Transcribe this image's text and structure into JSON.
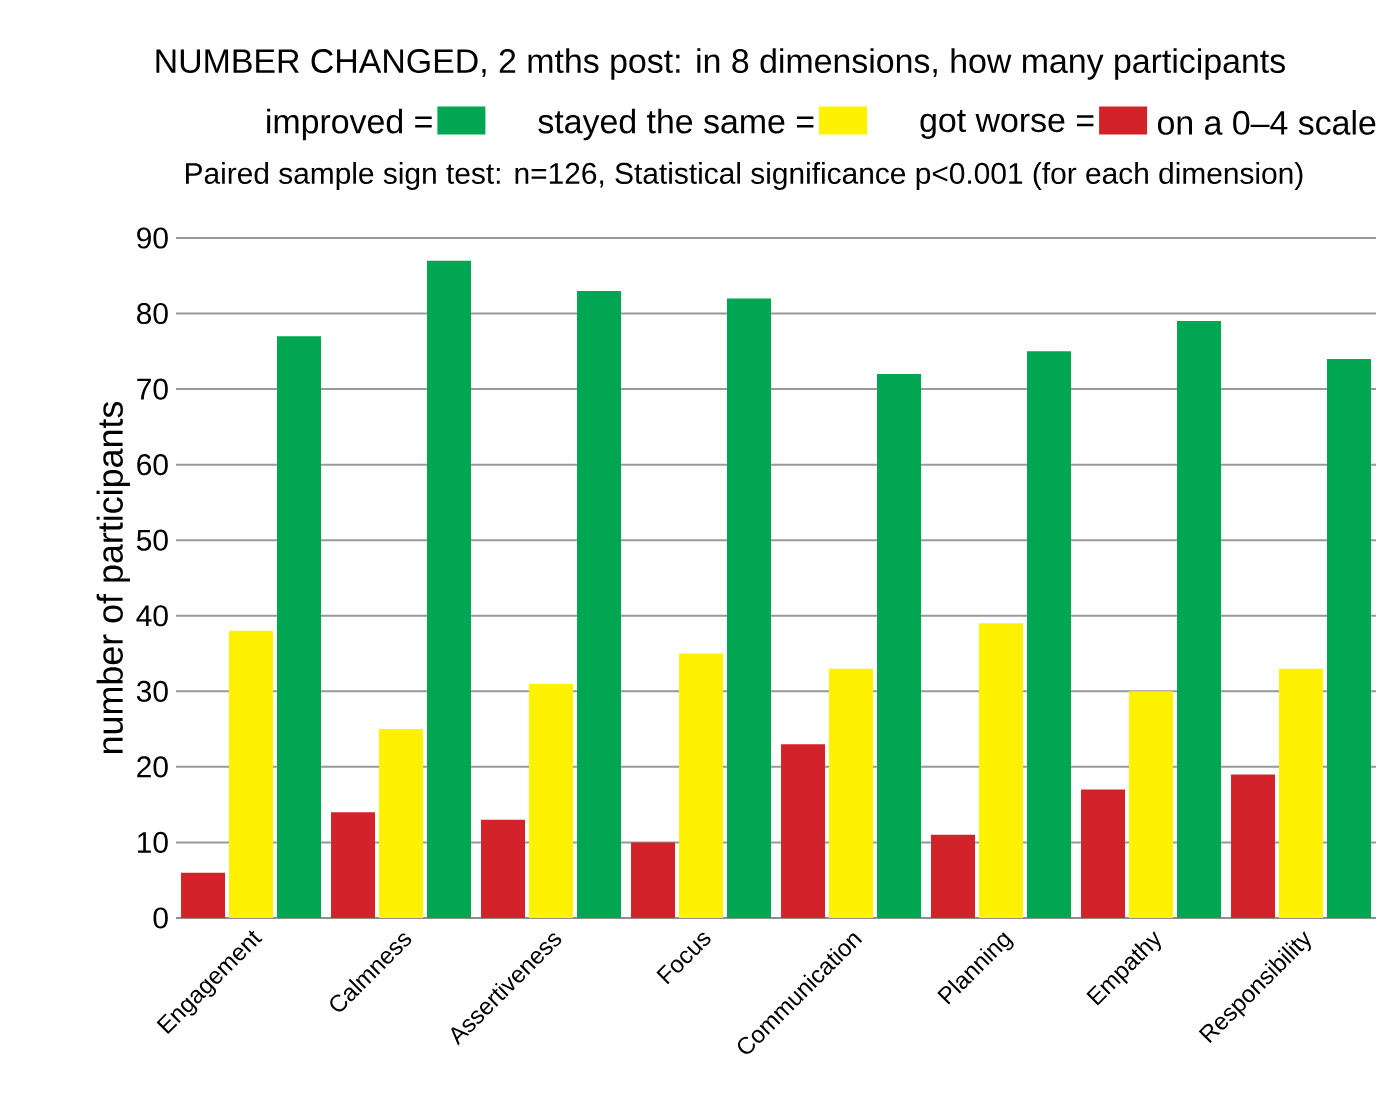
{
  "chart_data": {
    "type": "bar",
    "title": "NUMBER CHANGED, 2 mths post: in 8 dimensions, how many participants",
    "subtitle": "Paired sample sign test: n=126, Statistical significance p<0.001 (for each dimension)",
    "ylabel": "number of participants",
    "annotations": [
      "on a 0–4 scale"
    ],
    "categories": [
      "Engagement",
      "Calmness",
      "Assertiveness",
      "Focus",
      "Communication",
      "Planning",
      "Empathy",
      "Responsibility"
    ],
    "series": [
      {
        "name": "got worse =",
        "color": "#d2232a",
        "values": [
          6,
          14,
          13,
          10,
          23,
          11,
          17,
          19
        ]
      },
      {
        "name": "stayed the same =",
        "color": "#fff200",
        "values": [
          38,
          25,
          31,
          35,
          33,
          39,
          30,
          33
        ]
      },
      {
        "name": "improved =",
        "color": "#00a651",
        "values": [
          77,
          87,
          83,
          82,
          72,
          75,
          79,
          74
        ]
      }
    ],
    "ylim": [
      0,
      90
    ],
    "yticks": [
      0,
      10,
      20,
      30,
      40,
      50,
      60,
      70,
      80,
      90
    ],
    "grid": "y",
    "legend": "top"
  }
}
